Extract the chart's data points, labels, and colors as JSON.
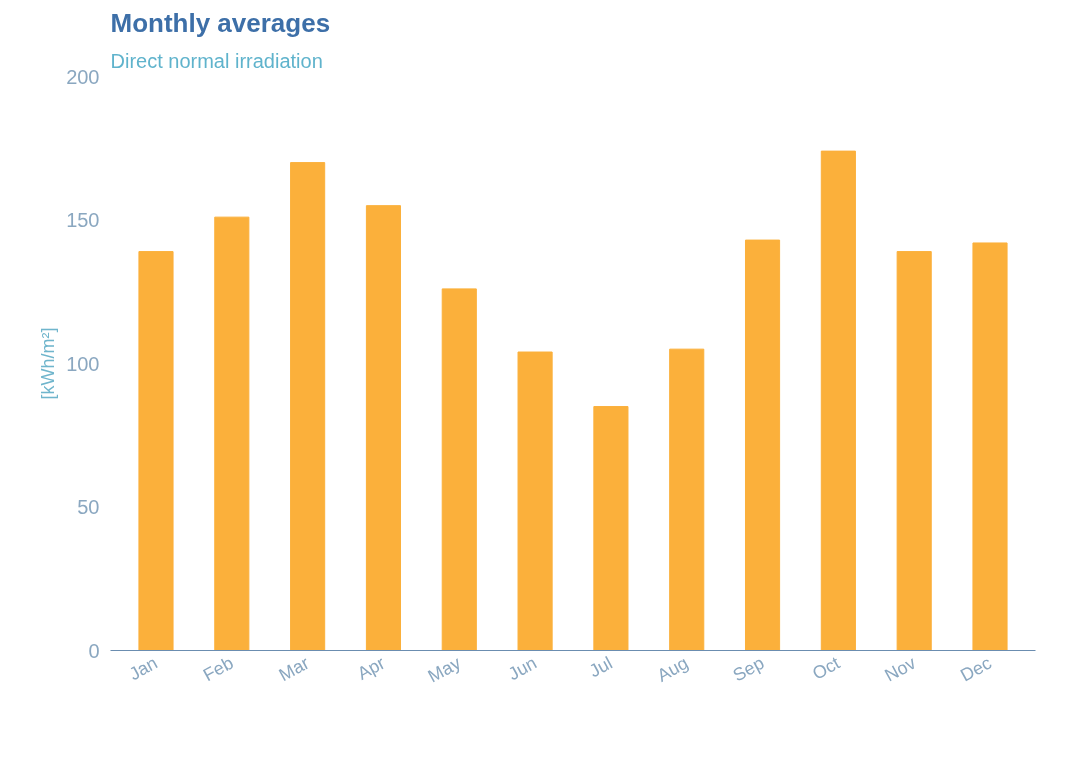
{
  "chart_data": {
    "type": "bar",
    "title": "Monthly averages",
    "subtitle": "Direct normal irradiation",
    "ylabel": "[kWh/m²]",
    "categories": [
      "Jan",
      "Feb",
      "Mar",
      "Apr",
      "May",
      "Jun",
      "Jul",
      "Aug",
      "Sep",
      "Oct",
      "Nov",
      "Dec"
    ],
    "values": [
      139,
      151,
      170,
      155,
      126,
      104,
      85,
      105,
      143,
      174,
      139,
      142
    ],
    "color": "#fbb03b",
    "ylim": [
      0,
      200
    ],
    "yticks": [
      0,
      50,
      100,
      150,
      200
    ],
    "grid": false
  }
}
